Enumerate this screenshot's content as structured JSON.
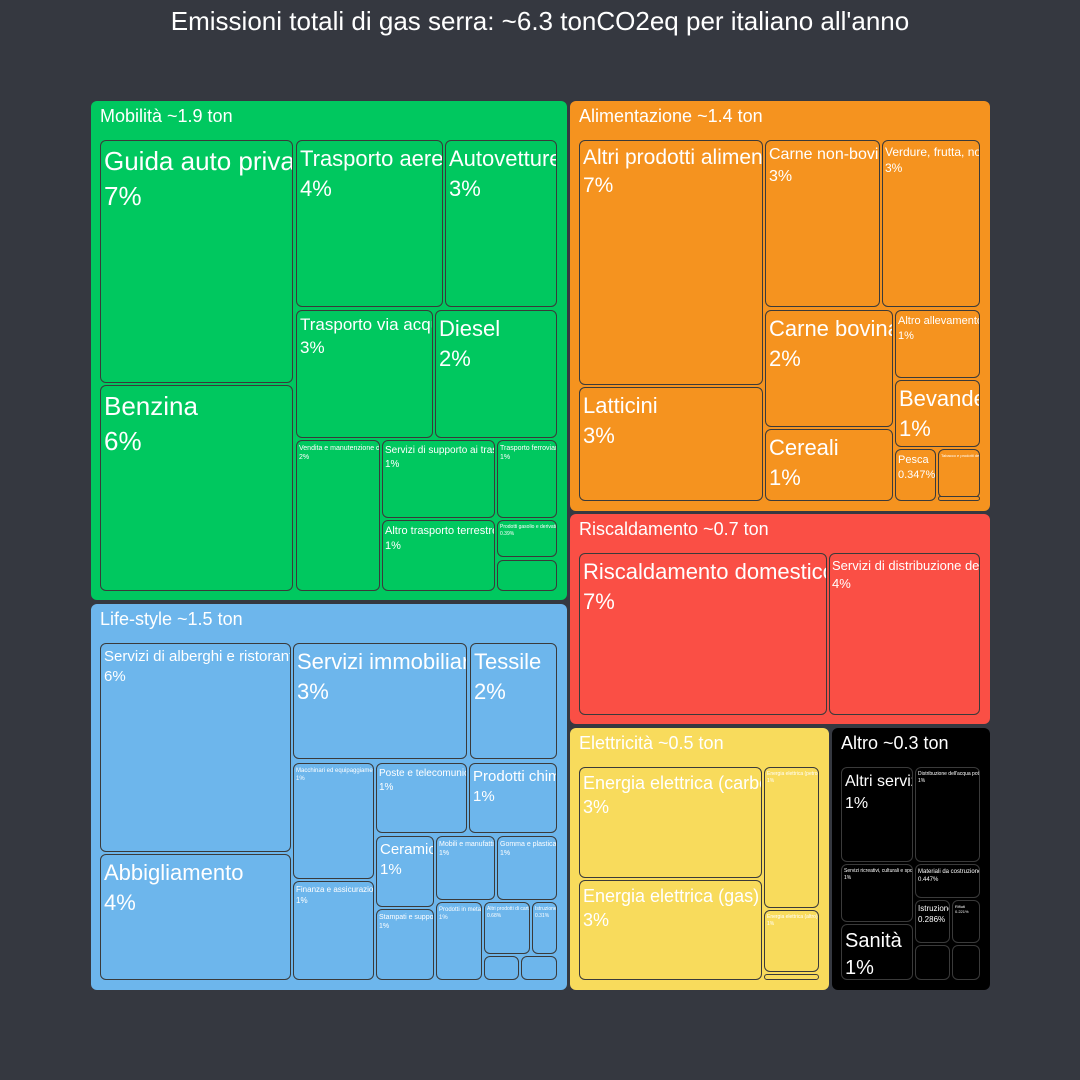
{
  "title": "Emissioni totali di gas serra: ~6.3 tonCO2eq per italiano all'anno",
  "chart_data": {
    "type": "treemap",
    "unit": "share of total emissions",
    "groups": [
      {
        "name": "Mobilità ~1.9 ton",
        "color": "#00c85f",
        "children": [
          {
            "name": "Guida auto privata",
            "value_label": "7%",
            "value": 7
          },
          {
            "name": "Benzina",
            "value_label": "6%",
            "value": 6
          },
          {
            "name": "Trasporto aereo",
            "value_label": "4%",
            "value": 4
          },
          {
            "name": "Autovetture",
            "value_label": "3%",
            "value": 3
          },
          {
            "name": "Trasporto via acqua",
            "value_label": "3%",
            "value": 3
          },
          {
            "name": "Diesel",
            "value_label": "2%",
            "value": 2
          },
          {
            "name": "Vendita e manutenzione di veicoli",
            "value_label": "2%",
            "value": 1.8
          },
          {
            "name": "Servizi di supporto ai trasporti",
            "value_label": "1%",
            "value": 1
          },
          {
            "name": "Trasporto ferroviario",
            "value_label": "1%",
            "value": 0.7
          },
          {
            "name": "Altro trasporto terrestre",
            "value_label": "1%",
            "value": 1
          },
          {
            "name": "Prodotti gasolio e derivati",
            "value_label": "0.39%",
            "value": 0.39
          },
          {
            "name": "",
            "value_label": "",
            "value": 0.2
          }
        ]
      },
      {
        "name": "Alimentazione ~1.4 ton",
        "color": "#f5931f",
        "children": [
          {
            "name": "Altri prodotti alimentari",
            "value_label": "7%",
            "value": 7
          },
          {
            "name": "Latticini",
            "value_label": "3%",
            "value": 3
          },
          {
            "name": "Carne non-bovina",
            "value_label": "3%",
            "value": 3
          },
          {
            "name": "Verdure, frutta, noci",
            "value_label": "3%",
            "value": 3
          },
          {
            "name": "Carne bovina",
            "value_label": "2%",
            "value": 2
          },
          {
            "name": "Altro allevamento",
            "value_label": "1%",
            "value": 1
          },
          {
            "name": "Bevande",
            "value_label": "1%",
            "value": 1
          },
          {
            "name": "Cereali",
            "value_label": "1%",
            "value": 1
          },
          {
            "name": "Pesca",
            "value_label": "0.347%",
            "value": 0.347
          },
          {
            "name": "Tabacco e prodotti del tabacco",
            "value_label": "",
            "value": 0.2
          },
          {
            "name": "",
            "value_label": "",
            "value": 0.05
          }
        ]
      },
      {
        "name": "Riscaldamento ~0.7 ton",
        "color": "#fa4f45",
        "children": [
          {
            "name": "Riscaldamento domestico",
            "value_label": "7%",
            "value": 7
          },
          {
            "name": "Servizi di distribuzione del gas",
            "value_label": "4%",
            "value": 4
          }
        ]
      },
      {
        "name": "Life-style ~1.5 ton",
        "color": "#6db6ec",
        "children": [
          {
            "name": "Servizi di alberghi e ristoranti",
            "value_label": "6%",
            "value": 6
          },
          {
            "name": "Abbigliamento",
            "value_label": "4%",
            "value": 4
          },
          {
            "name": "Servizi immobiliari",
            "value_label": "3%",
            "value": 3
          },
          {
            "name": "Tessile",
            "value_label": "2%",
            "value": 2
          },
          {
            "name": "Macchinari ed equipaggiamento",
            "value_label": "1%",
            "value": 1
          },
          {
            "name": "Poste e telecomunicazioni",
            "value_label": "1%",
            "value": 1
          },
          {
            "name": "Prodotti chimici",
            "value_label": "1%",
            "value": 1
          },
          {
            "name": "Finanza e assicurazioni",
            "value_label": "1%",
            "value": 1
          },
          {
            "name": "Ceramica",
            "value_label": "1%",
            "value": 1
          },
          {
            "name": "Mobili e manufatti vari",
            "value_label": "1%",
            "value": 1
          },
          {
            "name": "Gomma e plastica",
            "value_label": "1%",
            "value": 1
          },
          {
            "name": "Stampati e supporti",
            "value_label": "1%",
            "value": 1
          },
          {
            "name": "Prodotti in metallo",
            "value_label": "1%",
            "value": 0.8
          },
          {
            "name": "Altri prodotti di carta",
            "value_label": "0.68%",
            "value": 0.68
          },
          {
            "name": "Istruzione",
            "value_label": "0.31%",
            "value": 0.31
          },
          {
            "name": "",
            "value_label": "",
            "value": 0.2
          },
          {
            "name": "",
            "value_label": "",
            "value": 0.2
          }
        ]
      },
      {
        "name": "Elettricità ~0.5 ton",
        "color": "#f8db5c",
        "children": [
          {
            "name": "Energia elettrica (carbone)",
            "value_label": "3%",
            "value": 3
          },
          {
            "name": "Energia elettrica (gas)",
            "value_label": "3%",
            "value": 3
          },
          {
            "name": "Energia elettrica (petrolio)",
            "value_label": "1%",
            "value": 0.9
          },
          {
            "name": "Energia elettrica (altro)",
            "value_label": "1%",
            "value": 0.7
          },
          {
            "name": "",
            "value_label": "",
            "value": 0.05
          }
        ]
      },
      {
        "name": "Altro ~0.3 ton",
        "color": "#000000",
        "children": [
          {
            "name": "Altri servizi",
            "value_label": "1%",
            "value": 1
          },
          {
            "name": "Distribuzione dell'acqua potabile",
            "value_label": "1%",
            "value": 0.8
          },
          {
            "name": "Servizi ricreativi, culturali e sportivi",
            "value_label": "1%",
            "value": 0.7
          },
          {
            "name": "Sanità",
            "value_label": "1%",
            "value": 0.8
          },
          {
            "name": "Materiali da costruzione",
            "value_label": "0.447%",
            "value": 0.447
          },
          {
            "name": "Istruzione",
            "value_label": "0.286%",
            "value": 0.286
          },
          {
            "name": "Rifiuti",
            "value_label": "0.221%",
            "value": 0.221
          },
          {
            "name": "",
            "value_label": "",
            "value": 0.1
          },
          {
            "name": "",
            "value_label": "",
            "value": 0.1
          }
        ]
      }
    ]
  }
}
